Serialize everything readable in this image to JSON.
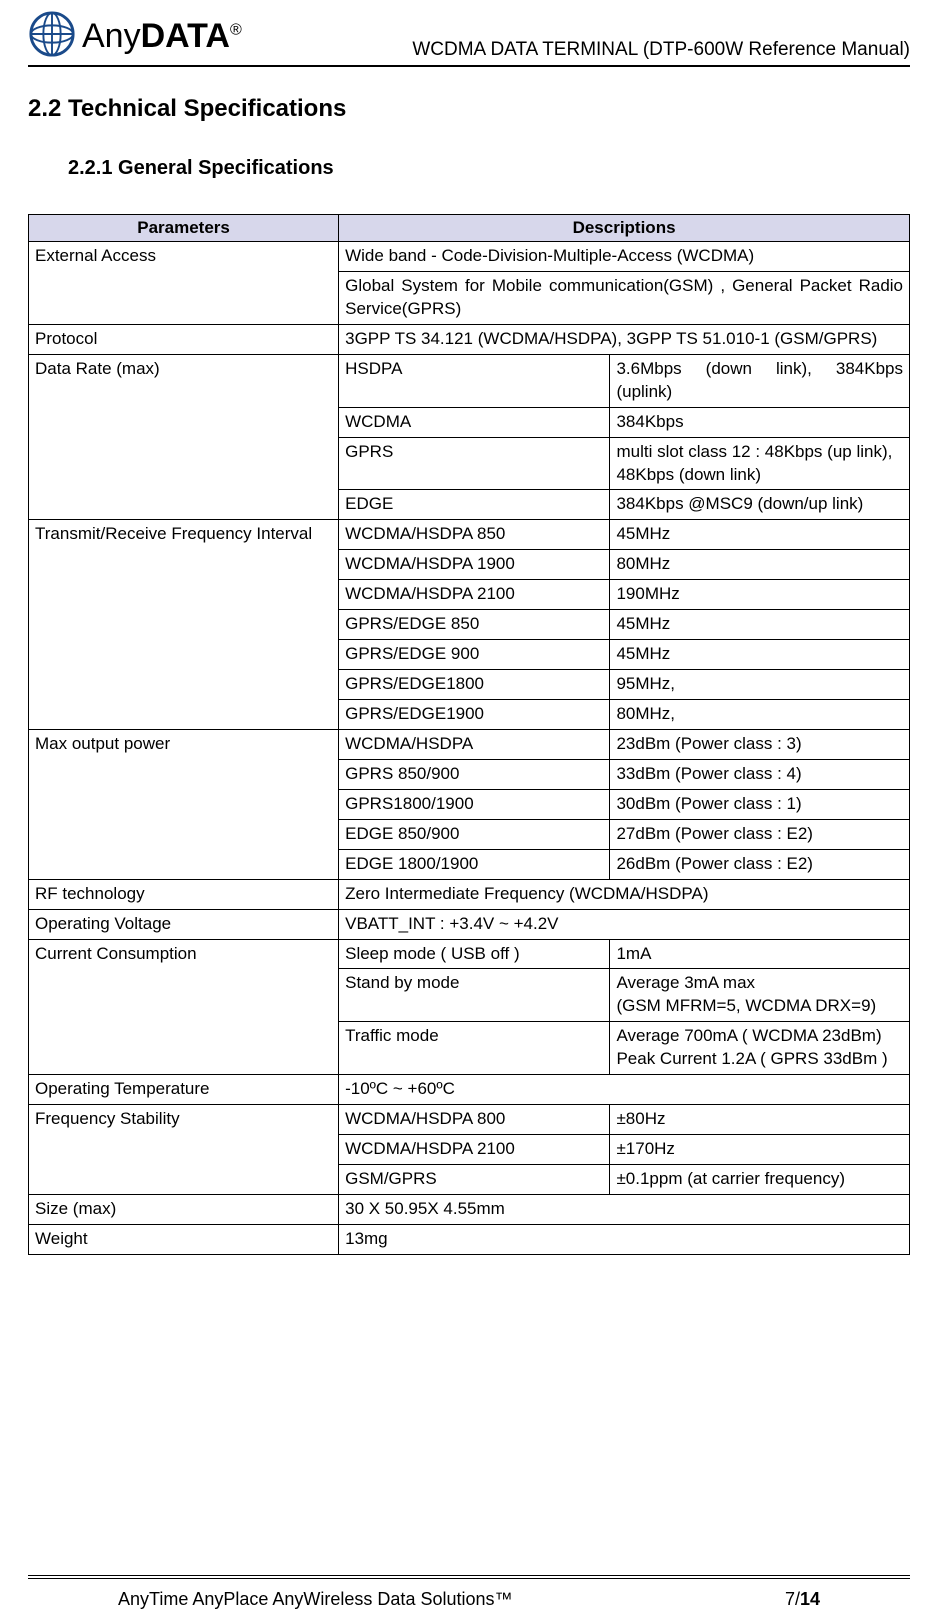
{
  "header": {
    "logo_any": "Any",
    "logo_data": "DATA",
    "logo_reg": "®",
    "doc_title": "WCDMA DATA TERMINAL (DTP-600W Reference Manual)"
  },
  "headings": {
    "h2": "2.2 Technical Specifications",
    "h3": "2.2.1 General Specifications"
  },
  "table": {
    "headers": [
      "Parameters",
      "Descriptions"
    ],
    "col_widths_pct": [
      35,
      31,
      34
    ],
    "header_bg": "#d7d7eb",
    "border_color": "#000000",
    "rows": [
      {
        "param": "External Access",
        "sub": null,
        "desc": "Wide band - Code-Division-Multiple-Access (WCDMA)",
        "param_rowspan": 2,
        "desc_colspan": 2
      },
      {
        "param": null,
        "sub": null,
        "desc": "Global System for Mobile communication(GSM) , General Packet Radio Service(GPRS)",
        "desc_colspan": 2,
        "justify": true
      },
      {
        "param": "Protocol",
        "sub": null,
        "desc": "3GPP TS 34.121 (WCDMA/HSDPA), 3GPP TS 51.010-1 (GSM/GPRS)",
        "desc_colspan": 2
      },
      {
        "param": "Data Rate (max)",
        "sub": "HSDPA",
        "desc": "3.6Mbps (down link), 384Kbps (uplink)",
        "param_rowspan": 4,
        "justify_desc": true
      },
      {
        "param": null,
        "sub": "WCDMA",
        "desc": "384Kbps"
      },
      {
        "param": null,
        "sub": "GPRS",
        "desc": "multi slot class 12 : 48Kbps (up link), 48Kbps (down link)"
      },
      {
        "param": null,
        "sub": "EDGE",
        "desc": "384Kbps @MSC9 (down/up link)"
      },
      {
        "param": "Transmit/Receive Frequency Interval",
        "sub": "WCDMA/HSDPA 850",
        "desc": "45MHz",
        "param_rowspan": 7
      },
      {
        "param": null,
        "sub": "WCDMA/HSDPA 1900",
        "desc": "80MHz"
      },
      {
        "param": null,
        "sub": "WCDMA/HSDPA 2100",
        "desc": "190MHz"
      },
      {
        "param": null,
        "sub": "GPRS/EDGE 850",
        "desc": "45MHz"
      },
      {
        "param": null,
        "sub": "GPRS/EDGE 900",
        "desc": "45MHz"
      },
      {
        "param": null,
        "sub": "GPRS/EDGE1800",
        "desc": "95MHz,"
      },
      {
        "param": null,
        "sub": "GPRS/EDGE1900",
        "desc": "80MHz,"
      },
      {
        "param": "Max output power",
        "sub": "WCDMA/HSDPA",
        "desc": "23dBm (Power class : 3)",
        "param_rowspan": 5
      },
      {
        "param": null,
        "sub": "GPRS 850/900",
        "desc": "33dBm (Power class : 4)"
      },
      {
        "param": null,
        "sub": "GPRS1800/1900",
        "desc": "30dBm (Power class : 1)"
      },
      {
        "param": null,
        "sub": "EDGE 850/900",
        "desc": "27dBm (Power class : E2)"
      },
      {
        "param": null,
        "sub": "EDGE 1800/1900",
        "desc": "26dBm (Power class : E2)"
      },
      {
        "param": "RF technology",
        "sub": null,
        "desc": "Zero Intermediate Frequency (WCDMA/HSDPA)",
        "desc_colspan": 2
      },
      {
        "param": "Operating Voltage",
        "sub": null,
        "desc": "VBATT_INT : +3.4V ~ +4.2V",
        "desc_colspan": 2
      },
      {
        "param": "Current Consumption",
        "sub": "Sleep mode ( USB off )",
        "desc": "1mA",
        "param_rowspan": 3,
        "sub_narrow": true
      },
      {
        "param": null,
        "sub": "Stand by mode",
        "desc": "Average 3mA max\n(GSM MFRM=5, WCDMA DRX=9)",
        "sub_narrow": true
      },
      {
        "param": null,
        "sub": "Traffic mode",
        "desc": "Average 700mA ( WCDMA 23dBm)\nPeak Current 1.2A ( GPRS 33dBm )",
        "sub_narrow": true
      },
      {
        "param": "Operating Temperature",
        "sub": null,
        "desc": "-10ºC ~ +60ºC",
        "desc_colspan": 2
      },
      {
        "param": "Frequency Stability",
        "sub": "WCDMA/HSDPA 800",
        "desc": "±80Hz",
        "param_rowspan": 3,
        "sub_narrow": true
      },
      {
        "param": null,
        "sub": "WCDMA/HSDPA 2100",
        "desc": "±170Hz",
        "sub_narrow": true
      },
      {
        "param": null,
        "sub": "GSM/GPRS",
        "desc": "±0.1ppm (at carrier frequency)",
        "sub_narrow": true
      },
      {
        "param": "Size (max)",
        "sub": null,
        "desc": "30 X 50.95X 4.55mm",
        "desc_colspan": 2
      },
      {
        "param": "Weight",
        "sub": null,
        "desc": "13mg",
        "desc_colspan": 2
      }
    ]
  },
  "footer": {
    "slogan": "AnyTime AnyPlace AnyWireless Data Solutions™",
    "page_current": "7/",
    "page_total": "14"
  }
}
